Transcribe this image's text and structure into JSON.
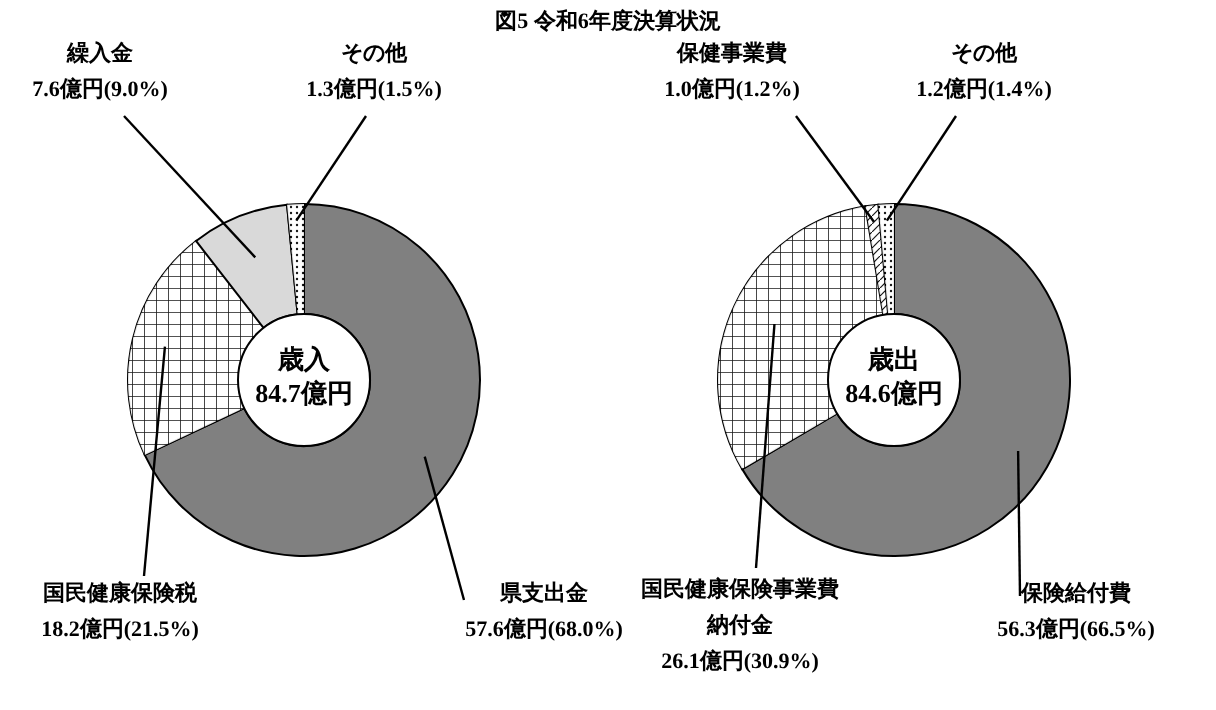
{
  "chart_data": [
    {
      "type": "donut",
      "title": "図5 令和6年度決算状況",
      "categories": [
        "県支出金",
        "国民健康保険税",
        "繰入金",
        "その他"
      ],
      "values": [
        57.6,
        18.2,
        7.6,
        1.3
      ],
      "colors": [
        "#808080",
        "#ffffff",
        "#d9d9d9",
        "#ffffff"
      ],
      "value_labels": [
        "57.6億円(68.0%)",
        "18.2億円(21.5%)",
        "7.6億円(9.0%)",
        "1.3億円(1.5%)"
      ],
      "annotations": [
        "歳入",
        "84.7億円"
      ]
    },
    {
      "type": "donut",
      "categories": [
        "保険給付費",
        "国民健康保険事業費納付金",
        "保健事業費",
        "その他"
      ],
      "values": [
        56.3,
        26.1,
        1.0,
        1.2
      ],
      "colors": [
        "#808080",
        "#ffffff",
        "#ffffff",
        "#ffffff"
      ],
      "value_labels": [
        "56.3億円(66.5%)",
        "26.1億円(30.9%)",
        "1.0億円(1.2%)",
        "1.2億円(1.4%)"
      ],
      "annotations": [
        "歳出",
        "84.6億円"
      ]
    }
  ]
}
